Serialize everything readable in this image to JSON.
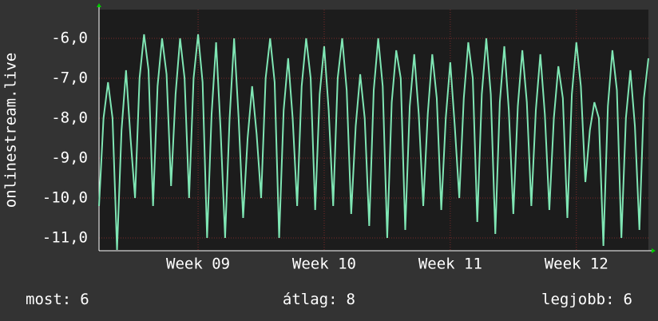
{
  "chart_data": {
    "type": "line",
    "y_label": "onlinestream.live",
    "ylim": [
      -11.32,
      -5.28
    ],
    "yticks": [
      {
        "value": -6,
        "label": "-6,0"
      },
      {
        "value": -7,
        "label": "-7,0"
      },
      {
        "value": -8,
        "label": "-8,0"
      },
      {
        "value": -9,
        "label": "-9,0"
      },
      {
        "value": -10,
        "label": "-10,0"
      },
      {
        "value": -11,
        "label": "-11,0"
      }
    ],
    "xlim": [
      0,
      122
    ],
    "xticks": [
      {
        "value": 22,
        "label": "Week 09"
      },
      {
        "value": 50,
        "label": "Week 10"
      },
      {
        "value": 78,
        "label": "Week 11"
      },
      {
        "value": 106,
        "label": "Week 12"
      }
    ],
    "grid": true,
    "series": [
      {
        "color": "#7fe6b4",
        "values": [
          -10.2,
          -8.0,
          -7.1,
          -8.0,
          -11.3,
          -8.3,
          -6.8,
          -8.5,
          -10.0,
          -7.0,
          -5.9,
          -6.8,
          -10.2,
          -7.2,
          -6.0,
          -6.9,
          -9.7,
          -7.4,
          -6.0,
          -7.0,
          -10.0,
          -7.0,
          -5.9,
          -7.1,
          -11.0,
          -7.9,
          -6.1,
          -8.3,
          -11.0,
          -8.0,
          -6.0,
          -8.0,
          -10.5,
          -8.5,
          -7.2,
          -8.4,
          -10.0,
          -7.0,
          -6.0,
          -7.1,
          -11.0,
          -7.8,
          -6.5,
          -8.0,
          -10.2,
          -7.2,
          -6.0,
          -7.0,
          -10.3,
          -7.4,
          -6.2,
          -7.8,
          -10.2,
          -7.0,
          -6.0,
          -7.3,
          -10.4,
          -8.2,
          -6.9,
          -8.0,
          -10.7,
          -7.3,
          -6.0,
          -7.2,
          -11.0,
          -7.6,
          -6.3,
          -7.0,
          -10.8,
          -7.7,
          -6.4,
          -7.9,
          -10.2,
          -7.9,
          -6.4,
          -7.5,
          -10.3,
          -8.0,
          -6.6,
          -8.2,
          -10.0,
          -7.5,
          -6.1,
          -7.0,
          -10.6,
          -7.4,
          -6.0,
          -7.4,
          -10.9,
          -7.6,
          -6.2,
          -7.8,
          -10.4,
          -7.7,
          -6.3,
          -7.6,
          -10.2,
          -7.8,
          -6.4,
          -7.9,
          -10.3,
          -8.0,
          -6.7,
          -7.5,
          -10.5,
          -7.4,
          -6.1,
          -7.2,
          -9.6,
          -8.3,
          -7.6,
          -8.0,
          -11.2,
          -7.7,
          -6.3,
          -7.3,
          -11.0,
          -8.0,
          -6.8,
          -8.2,
          -10.8,
          -7.5,
          -6.5
        ]
      }
    ],
    "stats": [
      {
        "label": "most:",
        "value": 6
      },
      {
        "label": "átlag:",
        "value": 8
      },
      {
        "label": "legjobb:",
        "value": 6
      }
    ]
  }
}
